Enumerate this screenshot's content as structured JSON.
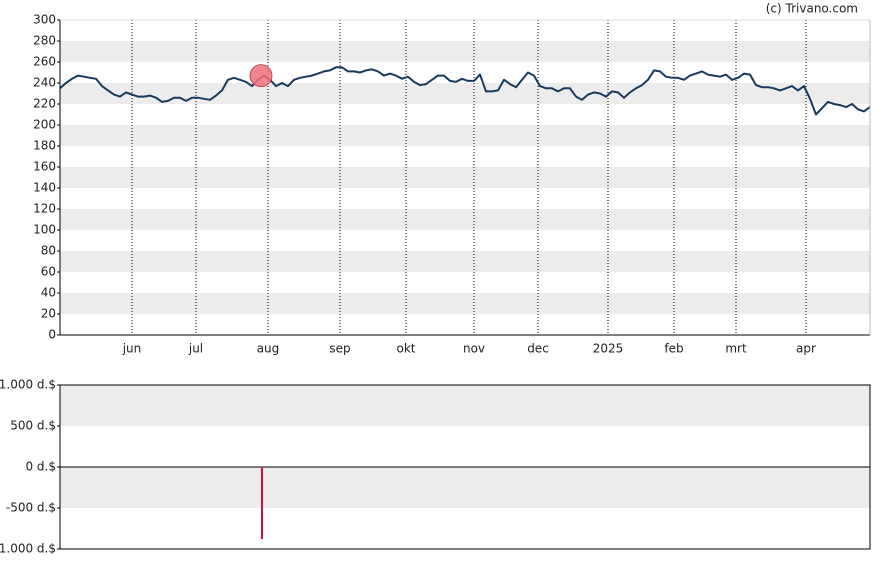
{
  "chart_data": [
    {
      "type": "line",
      "credit": "(c) Trivano.com",
      "xlim": [
        0,
        405
      ],
      "xticks": [
        {
          "value": 36,
          "label": "jun"
        },
        {
          "value": 68,
          "label": "jul"
        },
        {
          "value": 104,
          "label": "aug"
        },
        {
          "value": 140,
          "label": "sep"
        },
        {
          "value": 173,
          "label": "okt"
        },
        {
          "value": 207,
          "label": "nov"
        },
        {
          "value": 239,
          "label": "dec"
        },
        {
          "value": 274,
          "label": "2025"
        },
        {
          "value": 307,
          "label": "feb"
        },
        {
          "value": 338,
          "label": "mrt"
        },
        {
          "value": 373,
          "label": "apr"
        }
      ],
      "ylim": [
        0,
        300
      ],
      "yticks": [
        0,
        20,
        40,
        60,
        80,
        100,
        120,
        140,
        160,
        180,
        200,
        220,
        240,
        260,
        280,
        300
      ],
      "grid": true,
      "x": [
        0,
        3,
        6,
        9,
        12,
        15,
        18,
        21,
        24,
        27,
        30,
        33,
        36,
        39,
        42,
        45,
        48,
        51,
        54,
        57,
        60,
        63,
        66,
        69,
        72,
        75,
        78,
        81,
        84,
        87,
        90,
        93,
        96,
        99,
        102,
        105,
        108,
        111,
        114,
        117,
        120,
        123,
        126,
        129,
        132,
        135,
        138,
        141,
        144,
        147,
        150,
        153,
        156,
        159,
        162,
        165,
        168,
        171,
        174,
        177,
        180,
        183,
        186,
        189,
        192,
        195,
        198,
        201,
        204,
        207,
        210,
        213,
        216,
        219,
        222,
        225,
        228,
        231,
        234,
        237,
        240,
        243,
        246,
        249,
        252,
        255,
        258,
        261,
        264,
        267,
        270,
        273,
        276,
        279,
        282,
        285,
        288,
        291,
        294,
        297,
        300,
        303,
        306,
        309,
        312,
        315,
        318,
        321,
        324,
        327,
        330,
        333,
        336,
        339,
        342,
        345,
        348,
        351,
        354,
        357,
        360,
        363,
        366,
        369,
        372,
        375,
        378,
        381,
        384,
        387,
        390,
        393,
        396,
        399,
        402,
        405
      ],
      "series": [
        {
          "color": "#173a5e",
          "values": [
            235,
            240,
            244,
            247,
            246,
            245,
            244,
            237,
            233,
            229,
            227,
            231,
            229,
            227,
            227,
            228,
            226,
            222,
            223,
            226,
            226,
            223,
            226,
            226,
            225,
            224,
            228,
            233,
            243,
            245,
            243,
            241,
            237,
            243,
            247,
            243,
            237,
            240,
            237,
            243,
            245,
            246,
            247,
            249,
            251,
            252,
            255,
            255,
            251,
            251,
            250,
            252,
            253,
            251,
            247,
            249,
            247,
            244,
            246,
            241,
            238,
            239,
            243,
            247,
            247,
            242,
            241,
            244,
            242,
            242,
            248,
            232,
            232,
            233,
            243,
            239,
            236,
            243,
            250,
            247,
            237,
            235,
            235,
            232,
            235,
            235,
            227,
            224,
            229,
            231,
            230,
            227,
            232,
            231,
            226,
            231,
            235,
            238,
            243,
            252,
            251,
            246,
            245,
            245,
            243,
            247,
            249,
            251,
            248,
            247,
            246,
            248,
            243,
            245,
            249,
            248,
            238,
            236,
            236,
            235,
            233,
            235,
            237,
            233,
            237,
            225,
            210,
            216,
            222,
            220,
            219,
            217,
            220,
            215,
            213,
            217
          ]
        }
      ],
      "markers": {
        "color": "#f0707a",
        "x": [
          100.5
        ],
        "values": [
          247
        ]
      }
    },
    {
      "type": "bar",
      "xlim": [
        0,
        405
      ],
      "ylim": [
        -1000,
        1000
      ],
      "yticks": [
        {
          "value": -1000,
          "label": "-1.000 d.$"
        },
        {
          "value": -500,
          "label": "-500 d.$"
        },
        {
          "value": 0,
          "label": "0 d.$"
        },
        {
          "value": 500,
          "label": "500 d.$"
        },
        {
          "value": 1000,
          "label": "1.000 d.$"
        }
      ],
      "grid": true,
      "x": [
        101
      ],
      "values": [
        -880
      ],
      "color": "#d0103a"
    }
  ]
}
